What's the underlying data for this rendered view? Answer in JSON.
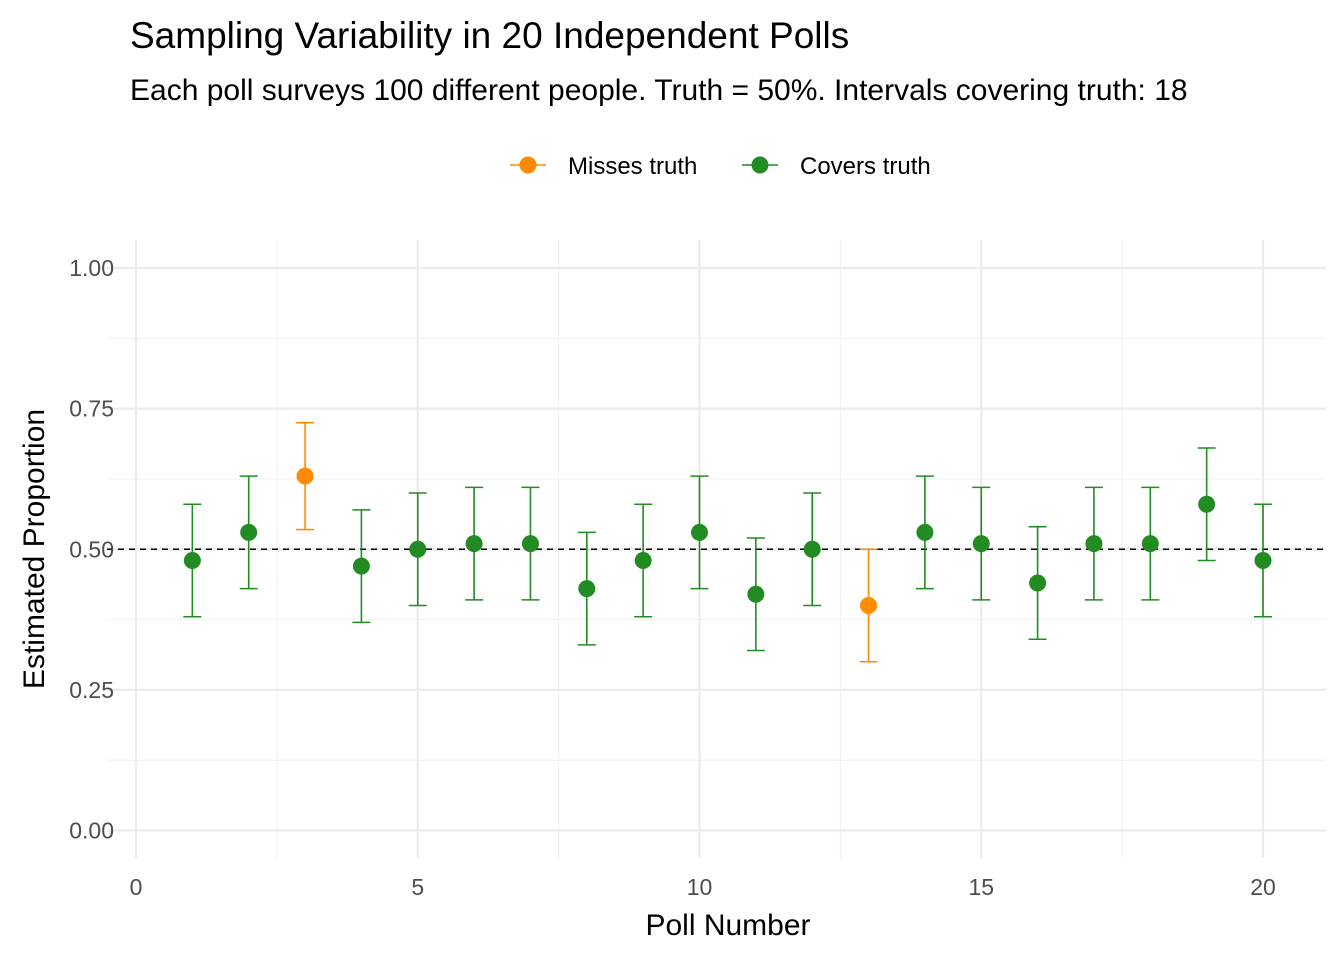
{
  "chart_data": {
    "type": "scatter",
    "title": "Sampling Variability in 20 Independent Polls",
    "subtitle": "Each poll surveys 100 different people.  Truth = 50%. Intervals covering truth: 18",
    "xlabel": "Poll Number",
    "ylabel": "Estimated Proportion",
    "xlim": [
      0,
      20.8
    ],
    "ylim": [
      0,
      1
    ],
    "x_ticks": [
      0,
      5,
      10,
      15,
      20
    ],
    "x_tick_labels": [
      "0",
      "5",
      "10",
      "15",
      "20"
    ],
    "y_ticks": [
      0,
      0.25,
      0.5,
      0.75,
      1
    ],
    "y_tick_labels": [
      "0.00",
      "0.25",
      "0.50",
      "0.75",
      "1.00"
    ],
    "reference_line": {
      "y": 0.5,
      "style": "dashed",
      "color": "#000000"
    },
    "grid": true,
    "legend_position": "top",
    "series": [
      {
        "name": "Misses truth",
        "color": "#ff8c00"
      },
      {
        "name": "Covers truth",
        "color": "#228b22"
      }
    ],
    "points": [
      {
        "x": 1,
        "y": 0.48,
        "lower": 0.38,
        "upper": 0.58,
        "series": "Covers truth"
      },
      {
        "x": 2,
        "y": 0.53,
        "lower": 0.43,
        "upper": 0.63,
        "series": "Covers truth"
      },
      {
        "x": 3,
        "y": 0.63,
        "lower": 0.535,
        "upper": 0.725,
        "series": "Misses truth"
      },
      {
        "x": 4,
        "y": 0.47,
        "lower": 0.37,
        "upper": 0.57,
        "series": "Covers truth"
      },
      {
        "x": 5,
        "y": 0.5,
        "lower": 0.4,
        "upper": 0.6,
        "series": "Covers truth"
      },
      {
        "x": 6,
        "y": 0.51,
        "lower": 0.41,
        "upper": 0.61,
        "series": "Covers truth"
      },
      {
        "x": 7,
        "y": 0.51,
        "lower": 0.41,
        "upper": 0.61,
        "series": "Covers truth"
      },
      {
        "x": 8,
        "y": 0.43,
        "lower": 0.33,
        "upper": 0.53,
        "series": "Covers truth"
      },
      {
        "x": 9,
        "y": 0.48,
        "lower": 0.38,
        "upper": 0.58,
        "series": "Covers truth"
      },
      {
        "x": 10,
        "y": 0.53,
        "lower": 0.43,
        "upper": 0.63,
        "series": "Covers truth"
      },
      {
        "x": 11,
        "y": 0.42,
        "lower": 0.32,
        "upper": 0.52,
        "series": "Covers truth"
      },
      {
        "x": 12,
        "y": 0.5,
        "lower": 0.4,
        "upper": 0.6,
        "series": "Covers truth"
      },
      {
        "x": 13,
        "y": 0.4,
        "lower": 0.3,
        "upper": 0.5,
        "series": "Misses truth"
      },
      {
        "x": 14,
        "y": 0.53,
        "lower": 0.43,
        "upper": 0.63,
        "series": "Covers truth"
      },
      {
        "x": 15,
        "y": 0.51,
        "lower": 0.41,
        "upper": 0.61,
        "series": "Covers truth"
      },
      {
        "x": 16,
        "y": 0.44,
        "lower": 0.34,
        "upper": 0.54,
        "series": "Covers truth"
      },
      {
        "x": 17,
        "y": 0.51,
        "lower": 0.41,
        "upper": 0.61,
        "series": "Covers truth"
      },
      {
        "x": 18,
        "y": 0.51,
        "lower": 0.41,
        "upper": 0.61,
        "series": "Covers truth"
      },
      {
        "x": 19,
        "y": 0.58,
        "lower": 0.48,
        "upper": 0.68,
        "series": "Covers truth"
      },
      {
        "x": 20,
        "y": 0.48,
        "lower": 0.38,
        "upper": 0.58,
        "series": "Covers truth"
      }
    ]
  }
}
